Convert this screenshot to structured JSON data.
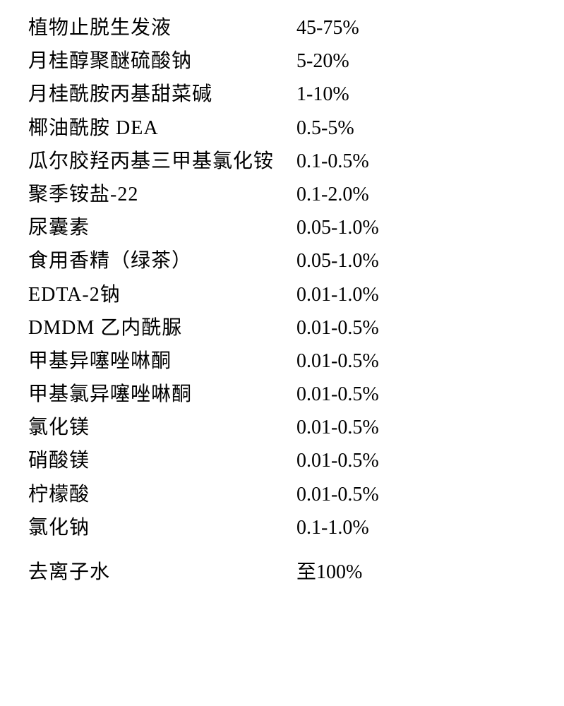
{
  "formulation": {
    "rows": [
      {
        "ingredient": "植物止脱生发液",
        "percentage": "45-75%"
      },
      {
        "ingredient": "月桂醇聚醚硫酸钠",
        "percentage": "5-20%"
      },
      {
        "ingredient": "月桂酰胺丙基甜菜碱",
        "percentage": "1-10%"
      },
      {
        "ingredient": "椰油酰胺 DEA",
        "percentage": "0.5-5%"
      },
      {
        "ingredient": "瓜尔胶羟丙基三甲基氯化铵",
        "percentage": "0.1-0.5%"
      },
      {
        "ingredient": "聚季铵盐-22",
        "percentage": "0.1-2.0%"
      },
      {
        "ingredient": "尿囊素",
        "percentage": "0.05-1.0%"
      },
      {
        "ingredient": "食用香精（绿茶）",
        "percentage": "0.05-1.0%"
      },
      {
        "ingredient": "EDTA-2钠",
        "percentage": "0.01-1.0%"
      },
      {
        "ingredient": "DMDM 乙内酰脲",
        "percentage": "0.01-0.5%"
      },
      {
        "ingredient": "甲基异噻唑啉酮",
        "percentage": "0.01-0.5%"
      },
      {
        "ingredient": "甲基氯异噻唑啉酮",
        "percentage": "0.01-0.5%"
      },
      {
        "ingredient": "氯化镁",
        "percentage": "0.01-0.5%"
      },
      {
        "ingredient": "硝酸镁",
        "percentage": "0.01-0.5%"
      },
      {
        "ingredient": "柠檬酸",
        "percentage": "0.01-0.5%"
      },
      {
        "ingredient": "氯化钠",
        "percentage": "0.1-1.0%"
      },
      {
        "ingredient": "去离子水",
        "percentage": "至100%"
      }
    ],
    "styling": {
      "font_family_cjk": "SimSun",
      "font_family_latin": "Times New Roman",
      "font_size": 28,
      "text_color": "#000000",
      "background_color": "#ffffff",
      "ingredient_col_width": 380,
      "row_spacing": 8,
      "last_row_extra_margin": 24
    }
  }
}
